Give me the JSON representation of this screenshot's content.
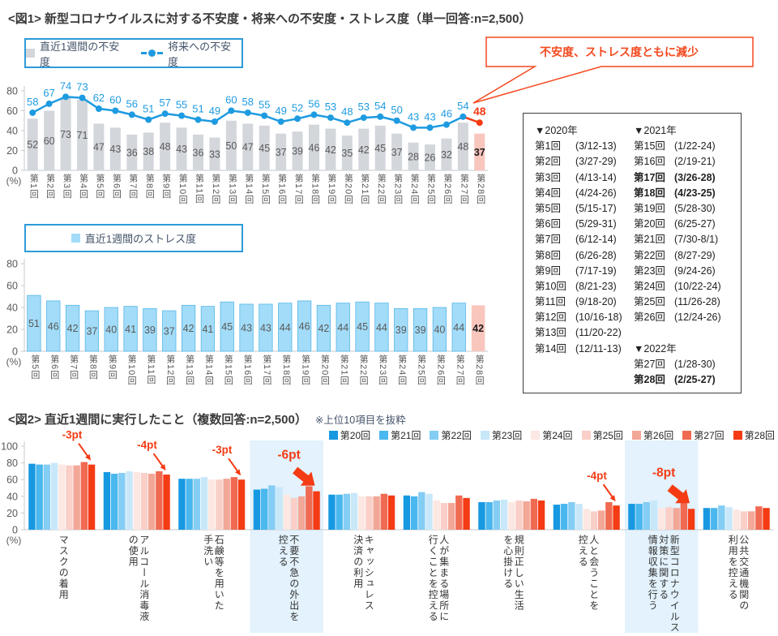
{
  "colors": {
    "accent_blue": "#1e9be0",
    "accent_red": "#f43b14",
    "legend_border": "#2d9bd8",
    "highlight_bg": "#e3f2fc",
    "gray_bar": "#d3d6db",
    "pink_bar": "#f9c6bd",
    "stress_bar": "#a2dcf8"
  },
  "fig1": {
    "title": "<図1> 新型コロナウイルスに対する不安度・将来への不安度・ストレス度（単一回答:n=2,500）",
    "callout": "不安度、ストレス度ともに減少"
  },
  "fig2": {
    "title": "<図2> 直近1週間に実行したこと（複数回答:n=2,500）",
    "note": "※上位10項目を抜粋"
  },
  "survey_schedule": {
    "columns": [
      {
        "sections": [
          {
            "header": "▼2020年",
            "rows": [
              {
                "label": "第1回",
                "date": "(3/12-13)"
              },
              {
                "label": "第2回",
                "date": "(3/27-29)"
              },
              {
                "label": "第3回",
                "date": "(4/13-14)"
              },
              {
                "label": "第4回",
                "date": "(4/24-26)"
              },
              {
                "label": "第5回",
                "date": "(5/15-17)"
              },
              {
                "label": "第6回",
                "date": "(5/29-31)"
              },
              {
                "label": "第7回",
                "date": "(6/12-14)"
              },
              {
                "label": "第8回",
                "date": "(6/26-28)"
              },
              {
                "label": "第9回",
                "date": "(7/17-19)"
              },
              {
                "label": "第10回",
                "date": "(8/21-23)"
              },
              {
                "label": "第11回",
                "date": "(9/18-20)"
              },
              {
                "label": "第12回",
                "date": "(10/16-18)"
              },
              {
                "label": "第13回",
                "date": "(11/20-22)"
              },
              {
                "label": "第14回",
                "date": "(12/11-13)"
              }
            ]
          }
        ]
      },
      {
        "sections": [
          {
            "header": "▼2021年",
            "rows": [
              {
                "label": "第15回",
                "date": "(1/22-24)"
              },
              {
                "label": "第16回",
                "date": "(2/19-21)"
              },
              {
                "label": "第17回",
                "date": "(3/26-28)",
                "bold": true
              },
              {
                "label": "第18回",
                "date": "(4/23-25)",
                "bold": true
              },
              {
                "label": "第19回",
                "date": "(5/28-30)"
              },
              {
                "label": "第20回",
                "date": "(6/25-27)"
              },
              {
                "label": "第21回",
                "date": "(7/30-8/1)"
              },
              {
                "label": "第22回",
                "date": "(8/27-29)"
              },
              {
                "label": "第23回",
                "date": "(9/24-26)"
              },
              {
                "label": "第24回",
                "date": "(10/22-24)"
              },
              {
                "label": "第25回",
                "date": "(11/26-28)"
              },
              {
                "label": "第26回",
                "date": "(12/24-26)"
              }
            ]
          },
          {
            "header": "▼2022年",
            "rows": [
              {
                "label": "第27回",
                "date": "(1/28-30)"
              },
              {
                "label": "第28回",
                "date": "(2/25-27)",
                "bold": true
              }
            ]
          }
        ]
      }
    ]
  },
  "chart_data": [
    {
      "type": "bar+line",
      "categories": [
        "第1回",
        "第2回",
        "第3回",
        "第4回",
        "第5回",
        "第6回",
        "第7回",
        "第8回",
        "第9回",
        "第10回",
        "第11回",
        "第12回",
        "第13回",
        "第14回",
        "第15回",
        "第16回",
        "第17回",
        "第18回",
        "第19回",
        "第20回",
        "第21回",
        "第22回",
        "第23回",
        "第24回",
        "第25回",
        "第26回",
        "第27回",
        "第28回"
      ],
      "series": [
        {
          "name": "直近1週間の不安度",
          "type": "bar",
          "color": "#d3d6db",
          "last_color": "#f9c6bd",
          "values": [
            52,
            60,
            73,
            71,
            47,
            43,
            36,
            38,
            48,
            43,
            36,
            33,
            50,
            47,
            45,
            37,
            39,
            46,
            42,
            35,
            42,
            45,
            37,
            28,
            26,
            32,
            48,
            37
          ]
        },
        {
          "name": "将来への不安度",
          "type": "line",
          "color": "#1e9be0",
          "last_color": "#f43b14",
          "values": [
            58,
            67,
            74,
            73,
            62,
            60,
            56,
            51,
            57,
            55,
            51,
            49,
            60,
            58,
            55,
            49,
            52,
            56,
            53,
            48,
            53,
            54,
            50,
            43,
            43,
            46,
            54,
            48
          ]
        }
      ],
      "ylim": [
        0,
        80
      ],
      "yticks": [
        0,
        20,
        40,
        60,
        80
      ],
      "ylabel": "(%)",
      "grid": false,
      "last_point_highlighted": true
    },
    {
      "type": "bar",
      "categories": [
        "第5回",
        "第6回",
        "第7回",
        "第8回",
        "第9回",
        "第10回",
        "第11回",
        "第12回",
        "第13回",
        "第14回",
        "第15回",
        "第16回",
        "第17回",
        "第18回",
        "第19回",
        "第20回",
        "第21回",
        "第22回",
        "第23回",
        "第24回",
        "第25回",
        "第26回",
        "第27回",
        "第28回"
      ],
      "series": [
        {
          "name": "直近1週間のストレス度",
          "type": "bar",
          "color": "#a2dcf8",
          "border": "#58b7e8",
          "last_color": "#f9c6bd",
          "values": [
            51,
            46,
            42,
            37,
            40,
            41,
            39,
            37,
            42,
            41,
            45,
            43,
            43,
            44,
            46,
            42,
            44,
            45,
            44,
            39,
            39,
            40,
            44,
            42
          ]
        }
      ],
      "ylim": [
        0,
        80
      ],
      "yticks": [
        0,
        20,
        40,
        60,
        80
      ],
      "ylabel": "(%)",
      "grid": false,
      "last_point_highlighted": true
    },
    {
      "type": "grouped-bar",
      "categories": [
        "マスクの着用",
        "アルコール消毒液\nの使用",
        "石鹸等を用いた\n手洗い",
        "不要不急の外出を\n控える",
        "キャッシュレス\n決済の利用",
        "人が集まる場所に\n行くことを控える",
        "規則正しい生活\nを心掛ける",
        "人と会うことを\n控える",
        "新型コロナウイルス\n対策に関する\n情報収集を行う",
        "公共交通機関の\n利用を控える"
      ],
      "series": [
        {
          "name": "第20回",
          "color": "#1799e1",
          "values": [
            79,
            69,
            61,
            48,
            42,
            41,
            33,
            30,
            31,
            26
          ]
        },
        {
          "name": "第21回",
          "color": "#4ab7ee",
          "values": [
            78,
            67,
            61,
            49,
            42,
            40,
            33,
            31,
            31,
            26
          ]
        },
        {
          "name": "第22回",
          "color": "#84cdf4",
          "values": [
            78,
            68,
            61,
            53,
            43,
            45,
            35,
            33,
            33,
            29
          ]
        },
        {
          "name": "第23回",
          "color": "#c8e8fa",
          "values": [
            80,
            70,
            63,
            51,
            44,
            43,
            36,
            31,
            35,
            27
          ]
        },
        {
          "name": "第24回",
          "color": "#fce7e2",
          "values": [
            78,
            69,
            60,
            42,
            40,
            35,
            33,
            25,
            26,
            24
          ]
        },
        {
          "name": "第25回",
          "color": "#f9cfc7",
          "values": [
            77,
            68,
            60,
            38,
            40,
            32,
            35,
            22,
            27,
            22
          ]
        },
        {
          "name": "第26回",
          "color": "#f3a797",
          "values": [
            77,
            67,
            61,
            40,
            40,
            32,
            34,
            23,
            26,
            22
          ]
        },
        {
          "name": "第27回",
          "color": "#f06a52",
          "values": [
            81,
            70,
            63,
            52,
            43,
            41,
            37,
            33,
            33,
            28
          ]
        },
        {
          "name": "第28回",
          "color": "#f43b14",
          "values": [
            78,
            66,
            60,
            46,
            41,
            38,
            35,
            29,
            25,
            26
          ]
        }
      ],
      "ylim": [
        0,
        100
      ],
      "yticks": [
        0,
        20,
        40,
        60,
        80,
        100
      ],
      "ylabel": "(%)",
      "grid": false,
      "legend_position": "top-right",
      "highlight_indices": [
        3,
        8
      ],
      "highlight_color": "#e3f2fc",
      "annotations": [
        {
          "category_index": 0,
          "text": "-3pt",
          "style": "arrow"
        },
        {
          "category_index": 1,
          "text": "-4pt",
          "style": "arrow"
        },
        {
          "category_index": 2,
          "text": "-3pt",
          "style": "arrow"
        },
        {
          "category_index": 3,
          "text": "-6pt",
          "style": "block-arrow"
        },
        {
          "category_index": 7,
          "text": "-4pt",
          "style": "arrow"
        },
        {
          "category_index": 8,
          "text": "-8pt",
          "style": "block-arrow"
        }
      ]
    }
  ]
}
